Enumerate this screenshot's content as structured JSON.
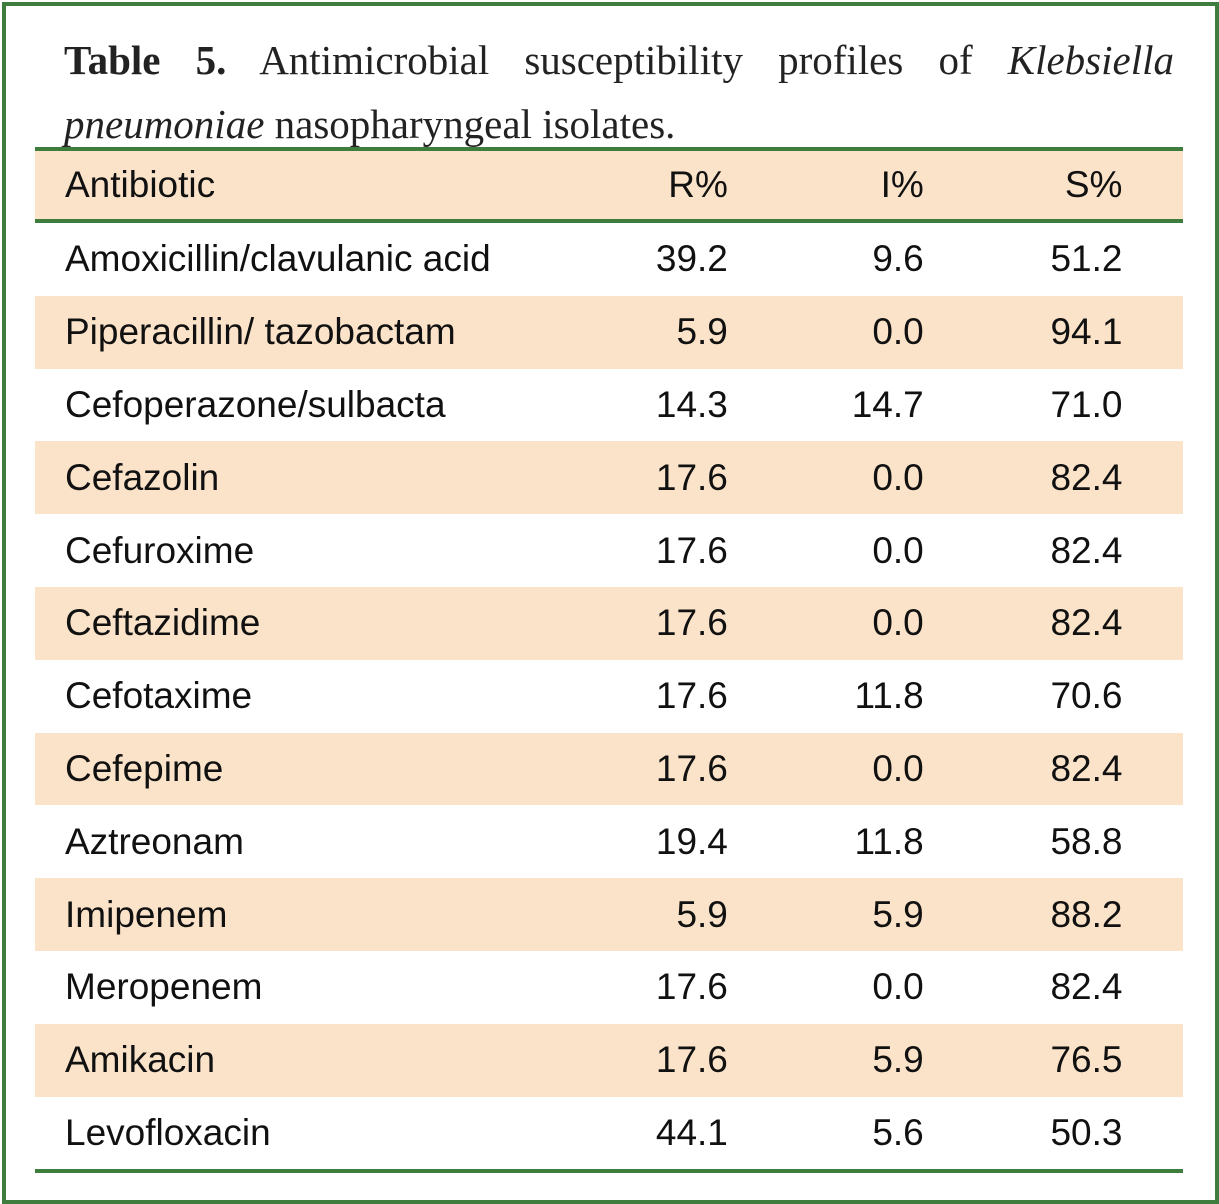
{
  "title": {
    "label": "Table 5.",
    "text": "Antimicrobial susceptibility profiles of",
    "species": "Klebsiella pneumoniae",
    "rest": "nasopharyngeal isolates."
  },
  "table": {
    "header": [
      "Antibiotic",
      "R%",
      "I%",
      "S%"
    ],
    "rows": [
      [
        "Amoxicillin/clavulanic acid",
        "39.2",
        "9.6",
        "51.2"
      ],
      [
        "Piperacillin/ tazobactam",
        "5.9",
        "0.0",
        "94.1"
      ],
      [
        "Cefoperazone/sulbacta",
        "14.3",
        "14.7",
        "71.0"
      ],
      [
        "Cefazolin",
        "17.6",
        "0.0",
        "82.4"
      ],
      [
        "Cefuroxime",
        "17.6",
        "0.0",
        "82.4"
      ],
      [
        "Ceftazidime",
        "17.6",
        "0.0",
        "82.4"
      ],
      [
        "Cefotaxime",
        "17.6",
        "11.8",
        "70.6"
      ],
      [
        "Cefepime",
        "17.6",
        "0.0",
        "82.4"
      ],
      [
        "Aztreonam",
        "19.4",
        "11.8",
        "58.8"
      ],
      [
        "Imipenem",
        "5.9",
        "5.9",
        "88.2"
      ],
      [
        "Meropenem",
        "17.6",
        "0.0",
        "82.4"
      ],
      [
        "Amikacin",
        "17.6",
        "5.9",
        "76.5"
      ],
      [
        "Levofloxacin",
        "44.1",
        "5.6",
        "50.3"
      ]
    ]
  }
}
